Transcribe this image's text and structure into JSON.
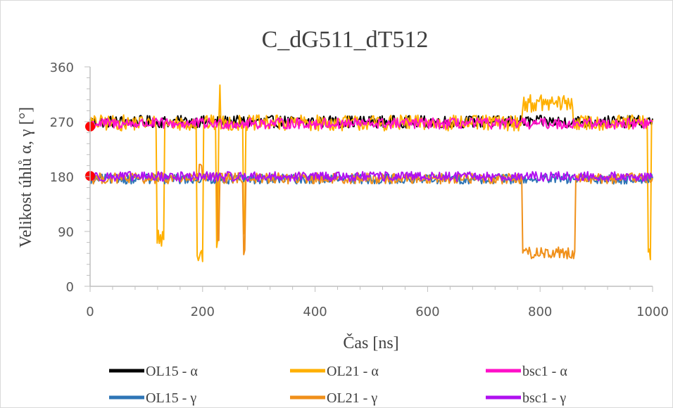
{
  "chart_data": {
    "type": "line",
    "title": "C_dG511_dT512",
    "xlabel": "Čas [ns]",
    "ylabel": "Velikost úhlů α, γ [°]",
    "xlim": [
      0,
      1000
    ],
    "ylim": [
      0,
      360
    ],
    "x_ticks": [
      "0",
      "200",
      "400",
      "600",
      "800",
      "1000"
    ],
    "y_ticks": [
      "0",
      "90",
      "180",
      "270",
      "360"
    ],
    "grid": false,
    "legend_position": "bottom",
    "series": [
      {
        "name": "OL15 - α",
        "color": "#000000",
        "baseline": 270,
        "noise": 10,
        "events": []
      },
      {
        "name": "OL21 - α",
        "color": "#FFB000",
        "baseline": 268,
        "noise": 13,
        "events": [
          {
            "x": [
              118,
              132
            ],
            "value": 80
          },
          {
            "x": [
              190,
              200
            ],
            "value": 50
          },
          {
            "x": [
              224,
              228
            ],
            "value": 70
          },
          {
            "x": [
              229,
              232
            ],
            "value": 322
          },
          {
            "x": [
              272,
              275
            ],
            "value": 100
          },
          {
            "x": [
              768,
              858
            ],
            "value": 300
          },
          {
            "x": [
              992,
              997
            ],
            "value": 55
          }
        ]
      },
      {
        "name": "bsc1 - α",
        "color": "#FF10C8",
        "baseline": 267,
        "noise": 9,
        "events": []
      },
      {
        "name": "OL15 - γ",
        "color": "#2E75B6",
        "baseline": 176,
        "noise": 8,
        "events": []
      },
      {
        "name": "OL21 - γ",
        "color": "#F0901A",
        "baseline": 177,
        "noise": 9,
        "events": [
          {
            "x": [
              193,
              199
            ],
            "value": 200
          },
          {
            "x": [
              226,
              230
            ],
            "value": 80
          },
          {
            "x": [
              272,
              276
            ],
            "value": 55
          },
          {
            "x": [
              768,
              862
            ],
            "value": 55
          }
        ]
      },
      {
        "name": "bsc1 - γ",
        "color": "#B010F0",
        "baseline": 180,
        "noise": 8,
        "events": []
      }
    ],
    "markers": [
      {
        "x": 0,
        "y": 262,
        "color": "#FF0000"
      },
      {
        "x": 0,
        "y": 181,
        "color": "#FF0000"
      }
    ]
  }
}
